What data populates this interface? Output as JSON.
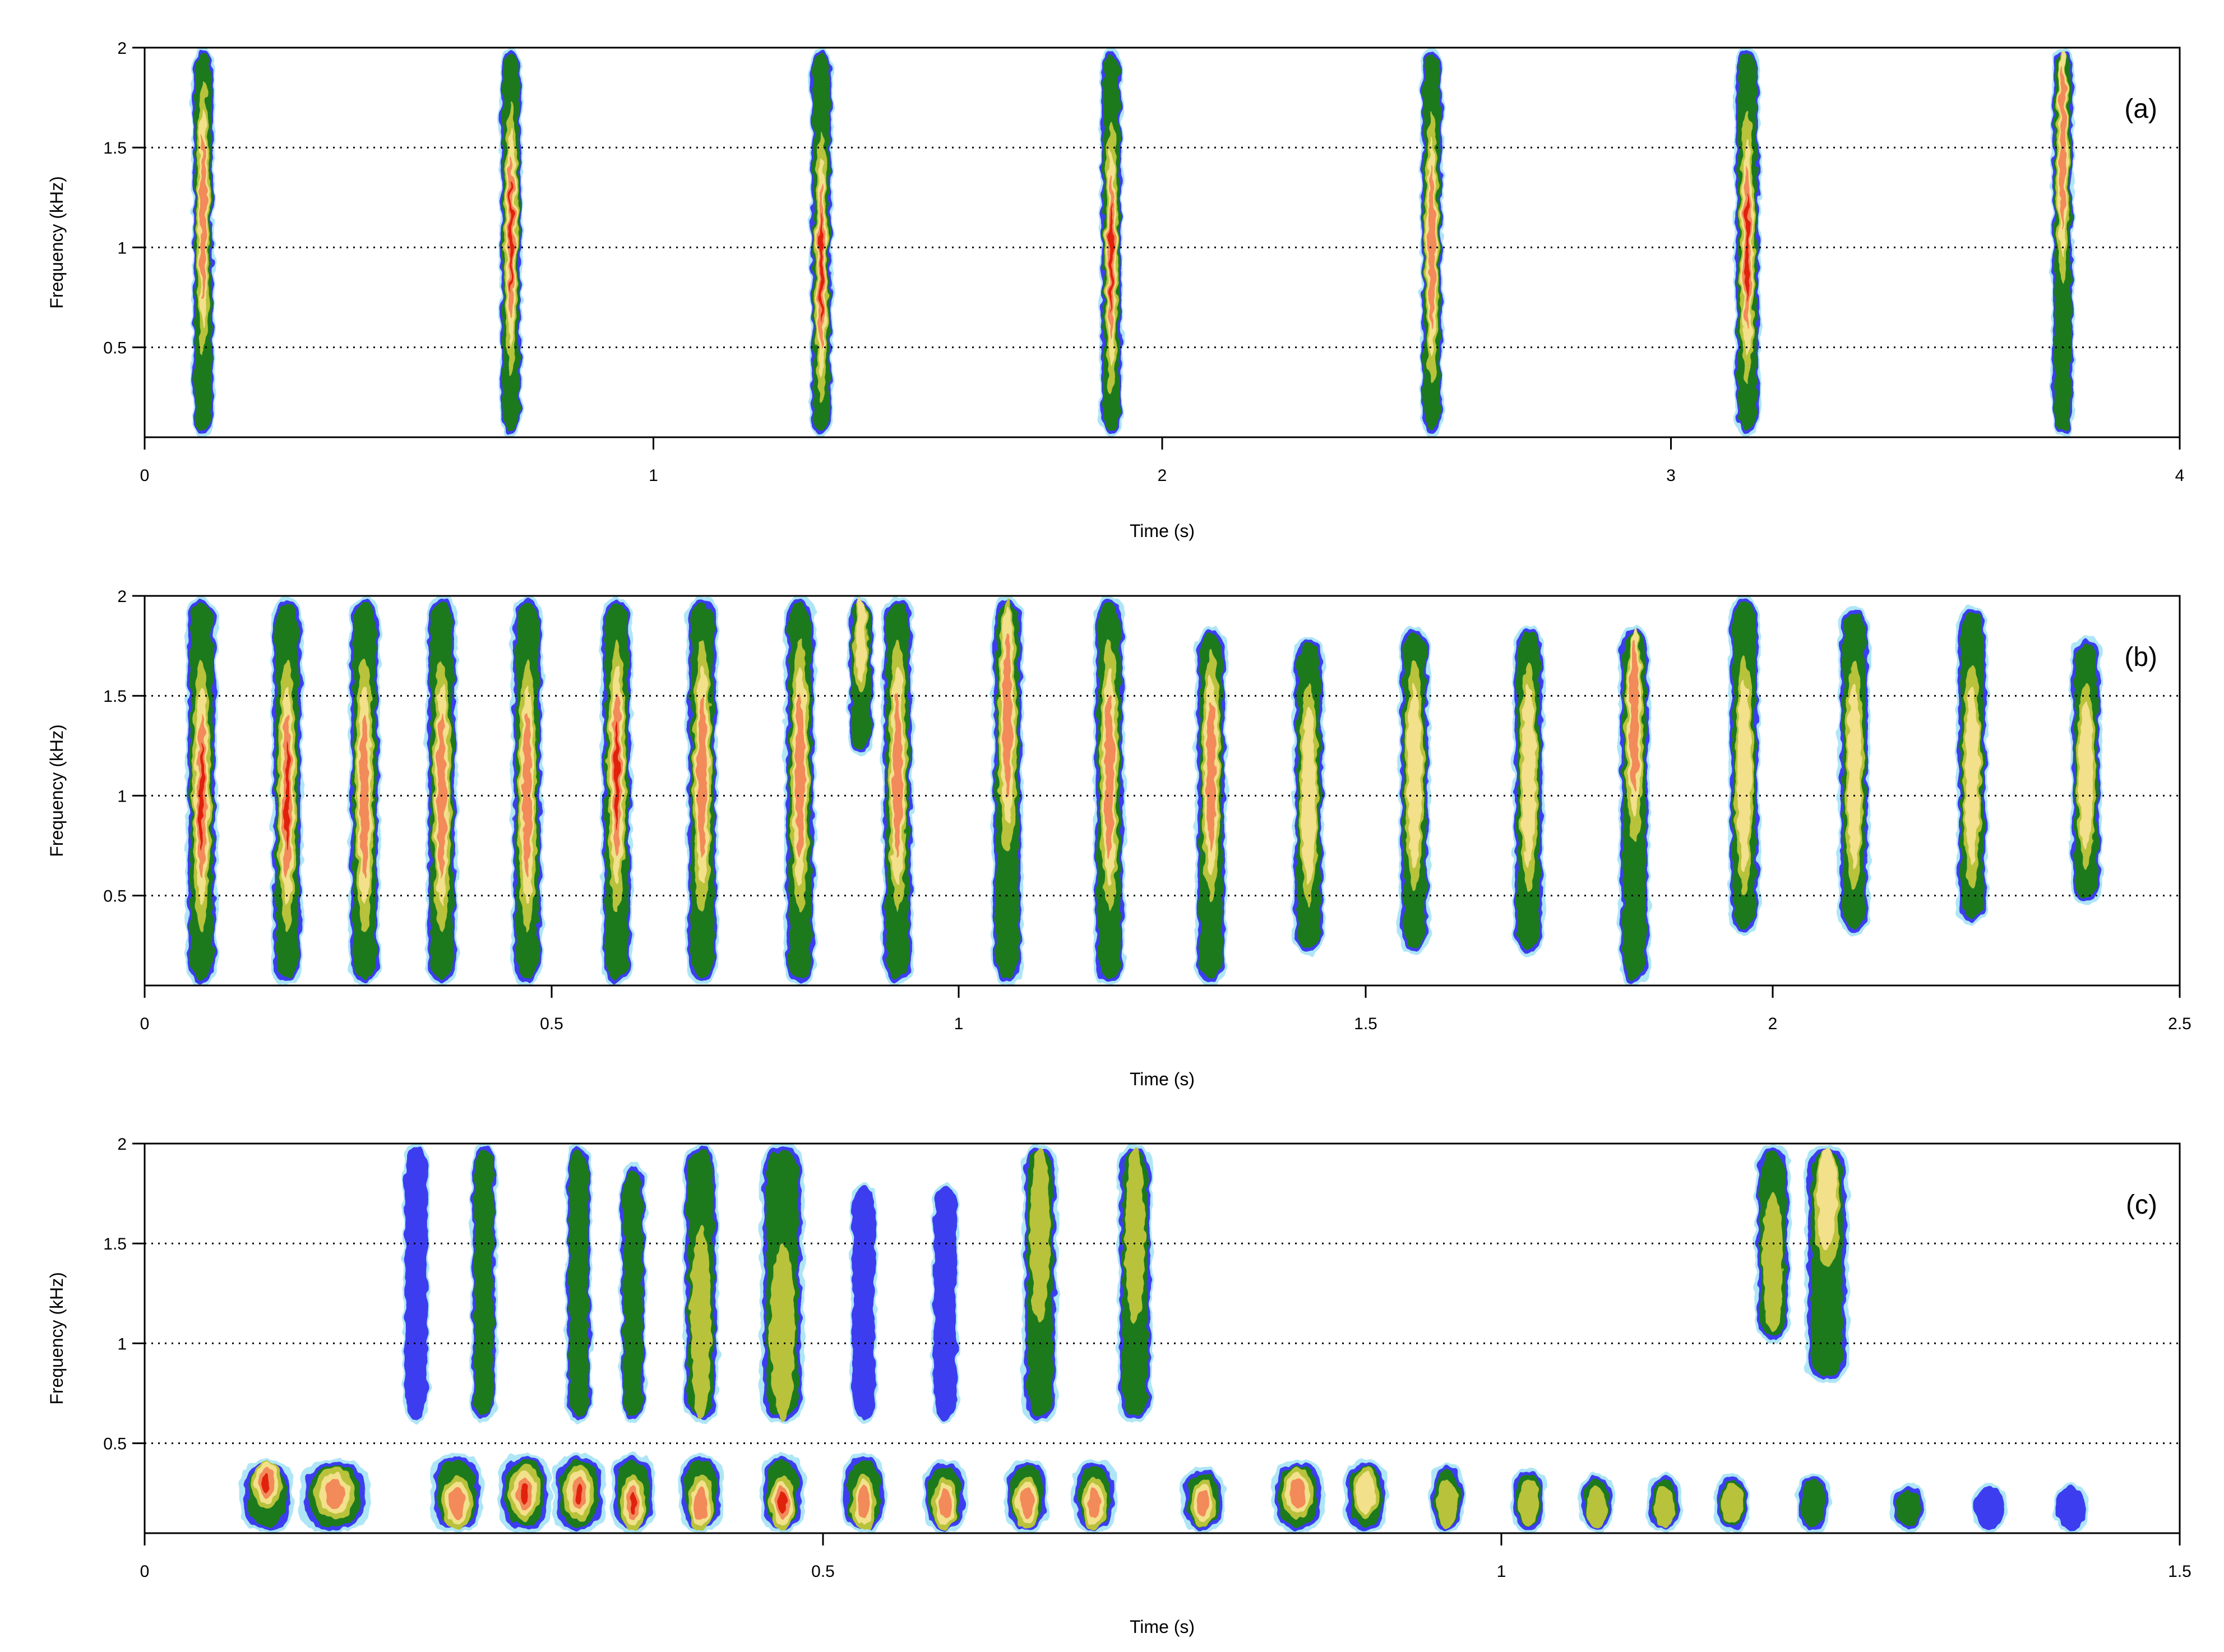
{
  "chart_data": [
    {
      "type": "heatmap",
      "panel_label": "(a)",
      "xlabel": "Time (s)",
      "ylabel": "Frequency (kHz)",
      "xlim": [
        0,
        4
      ],
      "ylim": [
        0.05,
        2
      ],
      "x_ticks": [
        0,
        1,
        2,
        3,
        4
      ],
      "x_tick_labels": [
        "0",
        "1",
        "2",
        "3",
        "4"
      ],
      "y_ticks": [
        0.5,
        1,
        1.5,
        2
      ],
      "y_tick_labels": [
        "0.5",
        "1",
        "1.5",
        "2"
      ],
      "grid": "dotted horizontal at 0.5, 1, 1.5 kHz",
      "colormap": [
        "#aee6f6",
        "#3c3cf0",
        "#1a7a1a",
        "#b8c23a",
        "#f2e08a",
        "#f28a5a",
        "#e02010"
      ],
      "events": [
        {
          "time": 0.115,
          "width": 0.035,
          "fmin": 0.05,
          "fmax": 2.0,
          "peak_freq": 1.15,
          "intensity": 0.85
        },
        {
          "time": 0.72,
          "width": 0.035,
          "fmin": 0.05,
          "fmax": 2.0,
          "peak_freq": 1.05,
          "intensity": 0.95
        },
        {
          "time": 1.33,
          "width": 0.035,
          "fmin": 0.05,
          "fmax": 2.0,
          "peak_freq": 0.9,
          "intensity": 0.95
        },
        {
          "time": 1.9,
          "width": 0.035,
          "fmin": 0.05,
          "fmax": 2.0,
          "peak_freq": 0.95,
          "intensity": 0.95
        },
        {
          "time": 2.53,
          "width": 0.035,
          "fmin": 0.05,
          "fmax": 2.0,
          "peak_freq": 1.0,
          "intensity": 0.9
        },
        {
          "time": 3.15,
          "width": 0.04,
          "fmin": 0.05,
          "fmax": 2.0,
          "peak_freq": 1.0,
          "intensity": 0.95
        },
        {
          "time": 3.77,
          "width": 0.035,
          "fmin": 0.05,
          "fmax": 2.0,
          "peak_freq": 1.5,
          "intensity": 0.9
        }
      ]
    },
    {
      "type": "heatmap",
      "panel_label": "(b)",
      "xlabel": "Time (s)",
      "ylabel": "Frequency (kHz)",
      "xlim": [
        0,
        2.5
      ],
      "ylim": [
        0.05,
        2
      ],
      "x_ticks": [
        0,
        0.5,
        1,
        1.5,
        2,
        2.5
      ],
      "x_tick_labels": [
        "0",
        "0.5",
        "1",
        "1.5",
        "2",
        "2.5"
      ],
      "y_ticks": [
        0.5,
        1,
        1.5,
        2
      ],
      "y_tick_labels": [
        "0.5",
        "1",
        "1.5",
        "2"
      ],
      "grid": "dotted horizontal at 0.5, 1, 1.5 kHz",
      "colormap": [
        "#aee6f6",
        "#3c3cf0",
        "#1a7a1a",
        "#b8c23a",
        "#f2e08a",
        "#f28a5a",
        "#e02010"
      ],
      "events": [
        {
          "time": 0.07,
          "width": 0.03,
          "fmin": 0.05,
          "fmax": 2.0,
          "peak_freq": 1.0,
          "intensity": 1.0
        },
        {
          "time": 0.175,
          "width": 0.03,
          "fmin": 0.05,
          "fmax": 2.0,
          "peak_freq": 1.0,
          "intensity": 1.0
        },
        {
          "time": 0.27,
          "width": 0.03,
          "fmin": 0.05,
          "fmax": 2.0,
          "peak_freq": 1.0,
          "intensity": 0.9
        },
        {
          "time": 0.365,
          "width": 0.03,
          "fmin": 0.05,
          "fmax": 2.0,
          "peak_freq": 1.0,
          "intensity": 0.9
        },
        {
          "time": 0.47,
          "width": 0.03,
          "fmin": 0.05,
          "fmax": 2.0,
          "peak_freq": 1.0,
          "intensity": 0.9
        },
        {
          "time": 0.58,
          "width": 0.03,
          "fmin": 0.05,
          "fmax": 2.0,
          "peak_freq": 1.1,
          "intensity": 0.95
        },
        {
          "time": 0.685,
          "width": 0.03,
          "fmin": 0.05,
          "fmax": 2.0,
          "peak_freq": 1.1,
          "intensity": 0.9
        },
        {
          "time": 0.805,
          "width": 0.03,
          "fmin": 0.05,
          "fmax": 2.0,
          "peak_freq": 1.1,
          "intensity": 0.85
        },
        {
          "time": 0.88,
          "width": 0.025,
          "fmin": 1.2,
          "fmax": 2.0,
          "peak_freq": 1.8,
          "intensity": 0.75
        },
        {
          "time": 0.925,
          "width": 0.03,
          "fmin": 0.05,
          "fmax": 2.0,
          "peak_freq": 1.1,
          "intensity": 0.9
        },
        {
          "time": 1.06,
          "width": 0.03,
          "fmin": 0.05,
          "fmax": 2.0,
          "peak_freq": 1.4,
          "intensity": 0.85
        },
        {
          "time": 1.185,
          "width": 0.03,
          "fmin": 0.05,
          "fmax": 2.0,
          "peak_freq": 1.1,
          "intensity": 0.8
        },
        {
          "time": 1.31,
          "width": 0.03,
          "fmin": 0.05,
          "fmax": 1.85,
          "peak_freq": 1.1,
          "intensity": 0.8
        },
        {
          "time": 1.43,
          "width": 0.03,
          "fmin": 0.2,
          "fmax": 1.8,
          "peak_freq": 1.0,
          "intensity": 0.75
        },
        {
          "time": 1.56,
          "width": 0.03,
          "fmin": 0.2,
          "fmax": 1.85,
          "peak_freq": 1.1,
          "intensity": 0.75
        },
        {
          "time": 1.7,
          "width": 0.03,
          "fmin": 0.2,
          "fmax": 1.85,
          "peak_freq": 1.1,
          "intensity": 0.75
        },
        {
          "time": 1.83,
          "width": 0.03,
          "fmin": 0.05,
          "fmax": 1.85,
          "peak_freq": 1.4,
          "intensity": 0.8
        },
        {
          "time": 1.965,
          "width": 0.03,
          "fmin": 0.3,
          "fmax": 2.0,
          "peak_freq": 1.1,
          "intensity": 0.75
        },
        {
          "time": 2.1,
          "width": 0.03,
          "fmin": 0.3,
          "fmax": 1.95,
          "peak_freq": 1.1,
          "intensity": 0.7
        },
        {
          "time": 2.245,
          "width": 0.03,
          "fmin": 0.35,
          "fmax": 1.95,
          "peak_freq": 1.1,
          "intensity": 0.7
        },
        {
          "time": 2.385,
          "width": 0.03,
          "fmin": 0.45,
          "fmax": 1.8,
          "peak_freq": 1.1,
          "intensity": 0.65
        }
      ]
    },
    {
      "type": "heatmap",
      "panel_label": "(c)",
      "xlabel": "Time (s)",
      "ylabel": "Frequency (kHz)",
      "xlim": [
        0,
        1.5
      ],
      "ylim": [
        0.05,
        2
      ],
      "x_ticks": [
        0,
        0.5,
        1,
        1.5
      ],
      "x_tick_labels": [
        "0",
        "0.5",
        "1",
        "1.5"
      ],
      "y_ticks": [
        0.5,
        1,
        1.5,
        2
      ],
      "y_tick_labels": [
        "0.5",
        "1",
        "1.5",
        "2"
      ],
      "grid": "dotted horizontal at 0.5, 1, 1.5 kHz",
      "colormap": [
        "#aee6f6",
        "#3c3cf0",
        "#1a7a1a",
        "#b8c23a",
        "#f2e08a",
        "#f28a5a",
        "#e02010"
      ],
      "events": [
        {
          "time": 0.09,
          "width": 0.03,
          "fmin": 0.05,
          "fmax": 0.42,
          "peak_freq": 0.3,
          "intensity": 1.0
        },
        {
          "time": 0.14,
          "width": 0.04,
          "fmin": 0.05,
          "fmax": 0.42,
          "peak_freq": 0.25,
          "intensity": 0.8
        },
        {
          "time": 0.23,
          "width": 0.03,
          "fmin": 0.05,
          "fmax": 0.45,
          "peak_freq": 0.2,
          "intensity": 0.9
        },
        {
          "time": 0.28,
          "width": 0.03,
          "fmin": 0.05,
          "fmax": 0.45,
          "peak_freq": 0.25,
          "intensity": 0.95
        },
        {
          "time": 0.32,
          "width": 0.03,
          "fmin": 0.05,
          "fmax": 0.45,
          "peak_freq": 0.25,
          "intensity": 0.95
        },
        {
          "time": 0.36,
          "width": 0.025,
          "fmin": 0.05,
          "fmax": 0.45,
          "peak_freq": 0.2,
          "intensity": 0.95
        },
        {
          "time": 0.41,
          "width": 0.025,
          "fmin": 0.05,
          "fmax": 0.45,
          "peak_freq": 0.2,
          "intensity": 0.9
        },
        {
          "time": 0.47,
          "width": 0.025,
          "fmin": 0.05,
          "fmax": 0.45,
          "peak_freq": 0.2,
          "intensity": 0.95
        },
        {
          "time": 0.53,
          "width": 0.025,
          "fmin": 0.05,
          "fmax": 0.45,
          "peak_freq": 0.2,
          "intensity": 0.9
        },
        {
          "time": 0.59,
          "width": 0.025,
          "fmin": 0.05,
          "fmax": 0.42,
          "peak_freq": 0.2,
          "intensity": 0.9
        },
        {
          "time": 0.65,
          "width": 0.025,
          "fmin": 0.05,
          "fmax": 0.42,
          "peak_freq": 0.2,
          "intensity": 0.85
        },
        {
          "time": 0.7,
          "width": 0.025,
          "fmin": 0.05,
          "fmax": 0.42,
          "peak_freq": 0.2,
          "intensity": 0.85
        },
        {
          "time": 0.78,
          "width": 0.025,
          "fmin": 0.05,
          "fmax": 0.38,
          "peak_freq": 0.2,
          "intensity": 0.8
        },
        {
          "time": 0.85,
          "width": 0.03,
          "fmin": 0.05,
          "fmax": 0.42,
          "peak_freq": 0.25,
          "intensity": 0.85
        },
        {
          "time": 0.9,
          "width": 0.025,
          "fmin": 0.05,
          "fmax": 0.42,
          "peak_freq": 0.25,
          "intensity": 0.75
        },
        {
          "time": 0.96,
          "width": 0.02,
          "fmin": 0.05,
          "fmax": 0.4,
          "peak_freq": 0.2,
          "intensity": 0.6
        },
        {
          "time": 1.02,
          "width": 0.02,
          "fmin": 0.05,
          "fmax": 0.38,
          "peak_freq": 0.2,
          "intensity": 0.55
        },
        {
          "time": 1.07,
          "width": 0.02,
          "fmin": 0.05,
          "fmax": 0.35,
          "peak_freq": 0.18,
          "intensity": 0.5
        },
        {
          "time": 1.12,
          "width": 0.02,
          "fmin": 0.05,
          "fmax": 0.35,
          "peak_freq": 0.18,
          "intensity": 0.5
        },
        {
          "time": 1.17,
          "width": 0.02,
          "fmin": 0.05,
          "fmax": 0.35,
          "peak_freq": 0.2,
          "intensity": 0.5
        },
        {
          "time": 1.23,
          "width": 0.02,
          "fmin": 0.05,
          "fmax": 0.35,
          "peak_freq": 0.2,
          "intensity": 0.45
        },
        {
          "time": 1.3,
          "width": 0.02,
          "fmin": 0.05,
          "fmax": 0.3,
          "peak_freq": 0.2,
          "intensity": 0.4
        },
        {
          "time": 1.36,
          "width": 0.02,
          "fmin": 0.05,
          "fmax": 0.3,
          "peak_freq": 0.2,
          "intensity": 0.35
        },
        {
          "time": 1.42,
          "width": 0.02,
          "fmin": 0.05,
          "fmax": 0.3,
          "peak_freq": 0.2,
          "intensity": 0.35
        },
        {
          "time": 0.2,
          "width": 0.015,
          "fmin": 0.6,
          "fmax": 2.0,
          "peak_freq": 1.0,
          "intensity": 0.35
        },
        {
          "time": 0.25,
          "width": 0.015,
          "fmin": 0.6,
          "fmax": 2.0,
          "peak_freq": 1.0,
          "intensity": 0.4
        },
        {
          "time": 0.32,
          "width": 0.015,
          "fmin": 0.6,
          "fmax": 2.0,
          "peak_freq": 0.9,
          "intensity": 0.45
        },
        {
          "time": 0.36,
          "width": 0.015,
          "fmin": 0.6,
          "fmax": 1.9,
          "peak_freq": 1.0,
          "intensity": 0.45
        },
        {
          "time": 0.41,
          "width": 0.02,
          "fmin": 0.6,
          "fmax": 2.0,
          "peak_freq": 1.1,
          "intensity": 0.5
        },
        {
          "time": 0.47,
          "width": 0.025,
          "fmin": 0.6,
          "fmax": 2.0,
          "peak_freq": 1.0,
          "intensity": 0.55
        },
        {
          "time": 0.53,
          "width": 0.015,
          "fmin": 0.6,
          "fmax": 1.8,
          "peak_freq": 1.0,
          "intensity": 0.35
        },
        {
          "time": 0.59,
          "width": 0.015,
          "fmin": 0.6,
          "fmax": 1.8,
          "peak_freq": 1.0,
          "intensity": 0.35
        },
        {
          "time": 0.66,
          "width": 0.02,
          "fmin": 0.6,
          "fmax": 2.0,
          "peak_freq": 1.6,
          "intensity": 0.55
        },
        {
          "time": 0.73,
          "width": 0.02,
          "fmin": 0.6,
          "fmax": 2.0,
          "peak_freq": 1.6,
          "intensity": 0.5
        },
        {
          "time": 1.2,
          "width": 0.02,
          "fmin": 1.0,
          "fmax": 2.0,
          "peak_freq": 1.4,
          "intensity": 0.6
        },
        {
          "time": 1.24,
          "width": 0.025,
          "fmin": 0.8,
          "fmax": 2.0,
          "peak_freq": 1.8,
          "intensity": 0.75
        }
      ]
    }
  ]
}
